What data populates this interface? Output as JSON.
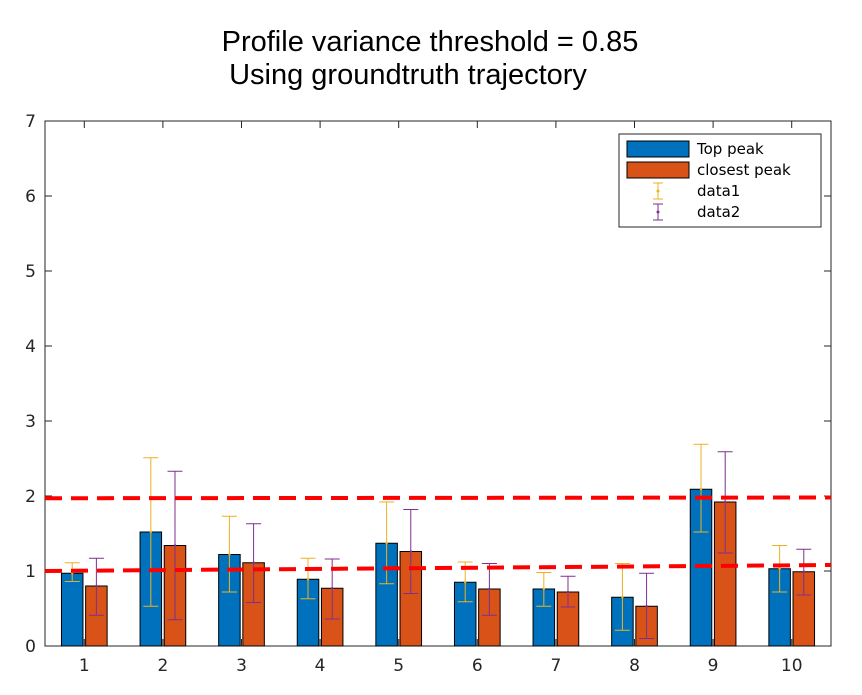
{
  "chart_data": {
    "type": "bar",
    "title": [
      "Profile variance threshold = 0.85",
      "Using groundtruth trajectory"
    ],
    "categories": [
      "1",
      "2",
      "3",
      "4",
      "5",
      "6",
      "7",
      "8",
      "9",
      "10"
    ],
    "xlabel": "",
    "ylabel": "",
    "ylim": [
      0,
      7
    ],
    "yticks": [
      "0",
      "1",
      "2",
      "3",
      "4",
      "5",
      "6",
      "7"
    ],
    "grid": false,
    "legend_position": "top-right",
    "series": [
      {
        "name": "Top peak",
        "color": "#0072BD",
        "values": [
          0.97,
          1.52,
          1.22,
          0.89,
          1.37,
          0.85,
          0.76,
          0.65,
          2.09,
          1.03
        ]
      },
      {
        "name": "closest peak",
        "color": "#D95319",
        "values": [
          0.8,
          1.34,
          1.11,
          0.77,
          1.26,
          0.76,
          0.72,
          0.53,
          1.92,
          0.99
        ]
      }
    ],
    "errorbars": [
      {
        "name": "data1",
        "color": "#EDB120",
        "center": [
          0.97,
          1.52,
          1.22,
          0.89,
          1.37,
          0.85,
          0.76,
          0.65,
          2.09,
          1.03
        ],
        "lower": [
          0.86,
          0.53,
          0.72,
          0.63,
          0.83,
          0.59,
          0.53,
          0.21,
          1.52,
          0.72
        ],
        "upper": [
          1.11,
          2.51,
          1.73,
          1.17,
          1.92,
          1.12,
          0.98,
          1.1,
          2.69,
          1.34
        ]
      },
      {
        "name": "data2",
        "color": "#7E2F8E",
        "center": [
          0.8,
          1.34,
          1.11,
          0.77,
          1.26,
          0.76,
          0.72,
          0.53,
          1.92,
          0.99
        ],
        "lower": [
          0.41,
          0.35,
          0.58,
          0.36,
          0.7,
          0.41,
          0.52,
          0.1,
          1.24,
          0.68
        ],
        "upper": [
          1.17,
          2.33,
          1.63,
          1.16,
          1.82,
          1.1,
          0.93,
          0.97,
          2.59,
          1.29
        ]
      }
    ],
    "reference_lines": [
      {
        "color": "#FF0000",
        "style": "dashed",
        "x": [
          0.5,
          10.5
        ],
        "y": [
          1.0,
          1.08
        ]
      },
      {
        "color": "#FF0000",
        "style": "dashed",
        "x": [
          0.5,
          10.5
        ],
        "y": [
          1.97,
          1.98
        ]
      }
    ]
  }
}
